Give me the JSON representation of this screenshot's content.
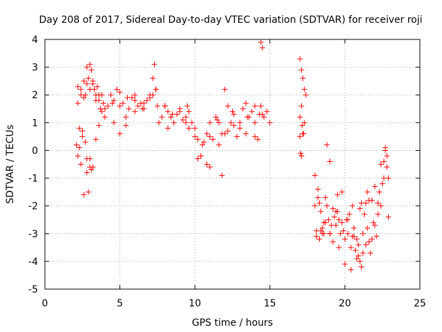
{
  "chart_data": {
    "type": "scatter",
    "title": "Day 208 of 2017, Sidereal Day-to-day VTEC variation (SDTVAR) for receiver roji",
    "xlabel": "GPS time / hours",
    "ylabel": "SDTVAR / TECUs",
    "xlim": [
      0,
      25
    ],
    "ylim": [
      -5,
      4
    ],
    "xticks": [
      "0",
      "5",
      "10",
      "15",
      "20",
      "25"
    ],
    "yticks": [
      "-5",
      "-4",
      "-3",
      "-2",
      "-1",
      "0",
      "1",
      "2",
      "3",
      "4"
    ],
    "grid": true,
    "marker": "+",
    "color": "#ff0000",
    "series": [
      {
        "name": "SDTVAR",
        "x": [
          2.1,
          2.2,
          2.3,
          2.4,
          2.5,
          2.6,
          2.7,
          2.8,
          2.9,
          3.0,
          3.1,
          3.2,
          3.3,
          3.4,
          3.5,
          3.6,
          3.7,
          3.8,
          3.9,
          4.0,
          4.2,
          4.4,
          4.6,
          4.8,
          5.0,
          5.2,
          5.4,
          5.6,
          5.8,
          6.0,
          6.2,
          6.4,
          6.6,
          6.8,
          7.0,
          7.2,
          7.4,
          7.6,
          7.8,
          8.0,
          8.2,
          8.4,
          8.6,
          8.8,
          9.0,
          9.2,
          9.4,
          9.6,
          9.8,
          10.0,
          10.2,
          10.4,
          10.6,
          10.8,
          11.0,
          11.2,
          11.4,
          11.6,
          11.8,
          12.0,
          12.2,
          12.4,
          12.6,
          12.8,
          13.0,
          13.2,
          13.4,
          13.6,
          13.8,
          14.0,
          14.2,
          14.4,
          14.6,
          14.8,
          15.0,
          2.2,
          2.4,
          2.6,
          2.8,
          3.0,
          3.2,
          3.4,
          3.6,
          3.8,
          4.0,
          4.5,
          5.0,
          5.5,
          6.0,
          6.5,
          7.0,
          7.5,
          8.0,
          8.5,
          9.0,
          9.5,
          10.0,
          10.5,
          11.0,
          11.5,
          12.0,
          12.5,
          13.0,
          13.5,
          14.0,
          14.5,
          2.2,
          2.4,
          2.6,
          2.8,
          3.0,
          3.2,
          3.4,
          3.6,
          4.6,
          5.0,
          5.4,
          6.0,
          6.6,
          7.2,
          7.3,
          7.4,
          8.2,
          9.4,
          9.6,
          10.2,
          10.4,
          10.8,
          11.0,
          11.6,
          11.8,
          12.2,
          12.6,
          13.4,
          14.0,
          14.3,
          14.4,
          14.5,
          2.3,
          2.5,
          2.7,
          2.8,
          2.9,
          3.0,
          3.1,
          17.0,
          17.1,
          17.2,
          17.3,
          17.4,
          17.0,
          17.1,
          17.2,
          17.3,
          17.05,
          17.15,
          17.25,
          17.0,
          17.1,
          18.0,
          18.1,
          18.2,
          18.3,
          18.4,
          18.5,
          18.6,
          18.7,
          18.8,
          18.9,
          19.0,
          19.1,
          19.2,
          19.3,
          19.4,
          19.5,
          19.6,
          19.7,
          19.8,
          19.9,
          20.0,
          20.1,
          20.2,
          20.3,
          20.4,
          20.5,
          20.6,
          20.7,
          20.8,
          20.9,
          21.0,
          21.1,
          21.2,
          21.3,
          21.4,
          21.5,
          21.6,
          21.7,
          21.8,
          21.9,
          22.0,
          22.1,
          22.2,
          22.3,
          22.4,
          22.5,
          22.6,
          22.7,
          22.8,
          22.9,
          18.0,
          18.2,
          18.4,
          18.6,
          18.8,
          19.0,
          19.4,
          19.8,
          20.2,
          20.6,
          21.0,
          21.4,
          21.8,
          22.2,
          22.6,
          22.8,
          18.1,
          18.3,
          18.5,
          18.7,
          19.2,
          19.6,
          20.0,
          20.4,
          20.8,
          21.2,
          21.6,
          22.0,
          22.4,
          22.7,
          22.9,
          19.0,
          19.5,
          20.5,
          20.9,
          21.1,
          21.5
        ],
        "y": [
          0.2,
          2.3,
          0.8,
          2.2,
          0.5,
          2.5,
          2.0,
          3.0,
          2.6,
          3.1,
          2.9,
          2.5,
          2.2,
          2.0,
          2.3,
          1.8,
          1.5,
          2.0,
          1.7,
          1.2,
          1.6,
          2.0,
          1.8,
          2.2,
          2.1,
          1.7,
          1.2,
          1.5,
          1.9,
          2.0,
          1.6,
          1.7,
          1.5,
          1.8,
          2.0,
          2.6,
          2.2,
          1.0,
          1.2,
          1.6,
          1.4,
          1.2,
          1.0,
          1.3,
          1.5,
          1.1,
          1.2,
          0.8,
          1.0,
          0.5,
          0.4,
          -0.2,
          0.3,
          0.6,
          1.0,
          0.4,
          1.2,
          0.2,
          0.6,
          2.2,
          1.6,
          1.0,
          1.3,
          0.5,
          1.0,
          1.5,
          1.7,
          1.2,
          1.4,
          1.0,
          0.4,
          1.6,
          1.2,
          1.4,
          1.0,
          1.7,
          2.0,
          1.9,
          2.4,
          2.2,
          2.4,
          1.8,
          2.0,
          1.4,
          1.5,
          1.7,
          1.6,
          1.9,
          1.8,
          1.5,
          1.9,
          1.6,
          1.6,
          1.3,
          1.4,
          1.6,
          0.8,
          0.2,
          0.5,
          1.1,
          0.6,
          1.4,
          0.8,
          1.2,
          1.6,
          1.3,
          -0.2,
          -0.5,
          -1.6,
          -0.8,
          -0.3,
          -0.6,
          0.4,
          0.9,
          1.0,
          0.6,
          0.9,
          1.4,
          1.7,
          2.0,
          3.1,
          2.2,
          0.8,
          1.0,
          1.4,
          -0.3,
          -0.2,
          -0.5,
          -0.6,
          1.0,
          -0.9,
          0.7,
          0.9,
          0.6,
          0.5,
          1.3,
          3.9,
          3.7,
          0.1,
          0.7,
          0.3,
          -0.3,
          -1.5,
          -0.6,
          -0.7,
          3.3,
          2.9,
          2.6,
          2.2,
          2.0,
          1.2,
          1.6,
          0.6,
          1.0,
          -0.1,
          0.9,
          0.6,
          0.5,
          -0.2,
          -2.0,
          -2.9,
          -1.4,
          -1.9,
          -2.2,
          -2.8,
          -2.6,
          -1.7,
          -2.0,
          -2.5,
          -3.0,
          -2.7,
          -2.1,
          -2.4,
          -2.2,
          -1.6,
          -2.5,
          -3.0,
          -2.6,
          -2.9,
          -3.2,
          -2.5,
          -3.0,
          -2.3,
          -3.5,
          -2.0,
          -3.1,
          -3.6,
          -3.9,
          -3.4,
          -4.0,
          -4.2,
          -3.0,
          -2.3,
          -1.9,
          -2.8,
          -3.3,
          -3.7,
          -3.2,
          -2.6,
          -2.7,
          -3.1,
          -1.9,
          -1.5,
          -2.0,
          -1.2,
          -0.4,
          0.0,
          -0.6,
          -1.0,
          -0.9,
          -1.7,
          -2.9,
          -3.0,
          0.2,
          -0.4,
          -2.7,
          -1.5,
          -2.5,
          -2.8,
          -2.1,
          -3.4,
          -1.8,
          -2.3,
          -1.0,
          -0.2,
          -3.1,
          -3.2,
          -3.0,
          -2.6,
          -3.3,
          -3.5,
          -4.1,
          -4.3,
          -3.2,
          -3.7,
          -1.8,
          -1.3,
          -0.5,
          0.1,
          -2.4,
          -3.0,
          -2.2,
          -3.1,
          -3.8,
          -1.9,
          -1.5
        ]
      }
    ]
  }
}
